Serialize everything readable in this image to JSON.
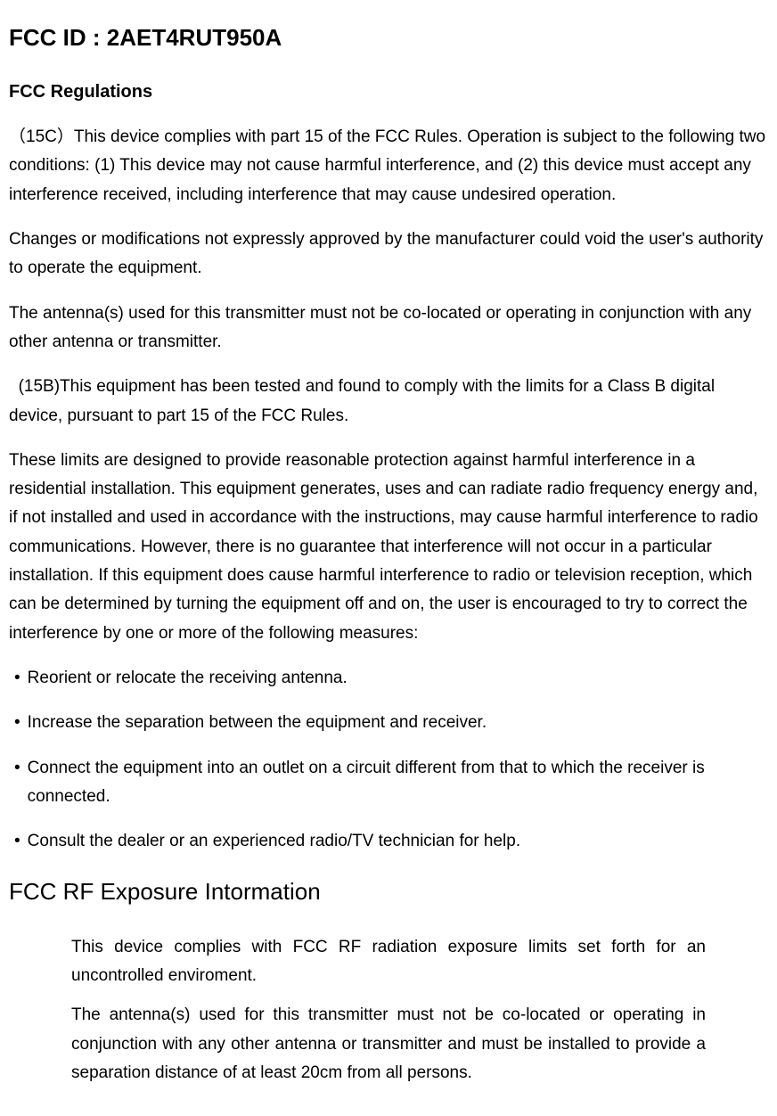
{
  "fcc_id_heading": "FCC ID : 2AET4RUT950A",
  "regulations_heading": "FCC Regulations",
  "paragraphs": {
    "p1": "（15C）This device complies with part 15 of the FCC Rules. Operation is subject to the following two conditions: (1) This device may not cause harmful interference, and (2) this device must accept any interference received, including interference that may cause undesired operation.",
    "p2": "Changes or modifications not expressly approved by the manufacturer could void the user's authority to operate the equipment.",
    "p3": "The antenna(s) used for this transmitter must not be co-located or operating in conjunction with any other antenna or transmitter.",
    "p4": "  (15B)This equipment has been tested and found to comply with the limits for a Class B digital device, pursuant to part 15 of the FCC Rules.",
    "p5": "These limits are designed to provide reasonable protection against harmful interference in a residential installation. This equipment generates, uses and can radiate radio frequency energy and, if not installed and used in accordance with the instructions, may cause harmful interference to radio communications. However, there is no guarantee that interference will not occur in a particular installation. If this equipment does cause harmful interference to radio or television reception, which can be determined by turning the equipment off and on, the user is encouraged to try to correct the interference by one or more of the following measures:"
  },
  "bullets": [
    "Reorient or relocate the receiving antenna.",
    "Increase the separation between the equipment and receiver.",
    "Connect the equipment into an outlet on a circuit different from that to which the receiver is connected.",
    "Consult the dealer or an experienced radio/TV technician for help."
  ],
  "rf_exposure_heading": "FCC RF Exposure Intormation",
  "rf_paragraphs": {
    "rf1": "This device complies with FCC RF radiation exposure limits set forth for an uncontrolled enviroment.",
    "rf2": "The antenna(s) used for this transmitter must not be co-located or operating in conjunction with any other antenna or transmitter and must be installed to provide a separation distance of at least 20cm from all persons."
  },
  "colors": {
    "text": "#000000",
    "background": "#ffffff"
  },
  "typography": {
    "body_fontsize": 19,
    "heading_fontsize": 26,
    "subheading_fontsize": 20,
    "font_family": "Arial"
  }
}
